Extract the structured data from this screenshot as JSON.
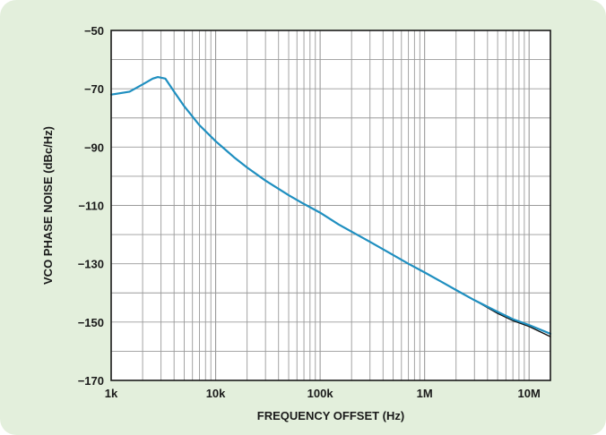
{
  "chart_data": {
    "type": "line",
    "title": "",
    "xlabel": "FREQUENCY OFFSET (Hz)",
    "ylabel": "VCO PHASE NOISE (dBc/Hz)",
    "x_scale": "log",
    "xlim": [
      1000,
      16000000
    ],
    "ylim": [
      -170,
      -50
    ],
    "x_ticks": [
      1000,
      10000,
      100000,
      1000000,
      10000000
    ],
    "x_tick_labels": [
      "1k",
      "10k",
      "100k",
      "1M",
      "10M"
    ],
    "y_ticks": [
      -50,
      -70,
      -90,
      -110,
      -130,
      -150,
      -170
    ],
    "y_tick_labels": [
      "−50",
      "−70",
      "−90",
      "−110",
      "−130",
      "−150",
      "−170"
    ],
    "grid": true,
    "colors": {
      "measured": "#111111",
      "simulated": "#1f8fc0",
      "background": "#e3efdc",
      "grid": "#9a9a9a"
    },
    "series": [
      {
        "x": [
          1000,
          1500,
          2000,
          2500,
          2800,
          3300,
          4000,
          5000,
          7000,
          10000,
          15000,
          20000,
          30000,
          50000,
          70000,
          100000,
          150000,
          200000,
          300000,
          500000,
          700000,
          1000000,
          1500000,
          2000000,
          3000000,
          5000000,
          7000000,
          10000000,
          16000000
        ],
        "y": [
          -72,
          -71,
          -68.5,
          -66.5,
          -66,
          -66.5,
          -71,
          -76,
          -82.5,
          -88,
          -93.5,
          -97,
          -101.5,
          -106.5,
          -109.5,
          -112.5,
          -116.5,
          -119,
          -122.5,
          -127,
          -130,
          -133,
          -136.5,
          -139,
          -142.5,
          -147,
          -149.5,
          -151.5,
          -155
        ]
      },
      {
        "x": [
          1000,
          1500,
          2000,
          2500,
          2800,
          3300,
          4000,
          5000,
          7000,
          10000,
          15000,
          20000,
          30000,
          50000,
          70000,
          100000,
          150000,
          200000,
          300000,
          500000,
          700000,
          1000000,
          1500000,
          2000000,
          3000000,
          5000000,
          7000000,
          10000000,
          16000000
        ],
        "y": [
          -72,
          -71,
          -68.5,
          -66.5,
          -66,
          -66.5,
          -71,
          -76,
          -82.5,
          -88,
          -93.5,
          -97,
          -101.5,
          -106.5,
          -109.5,
          -112.5,
          -116.5,
          -119,
          -122.5,
          -127,
          -130,
          -133,
          -136.5,
          -139,
          -142.5,
          -146.5,
          -149,
          -151,
          -154
        ]
      }
    ]
  }
}
